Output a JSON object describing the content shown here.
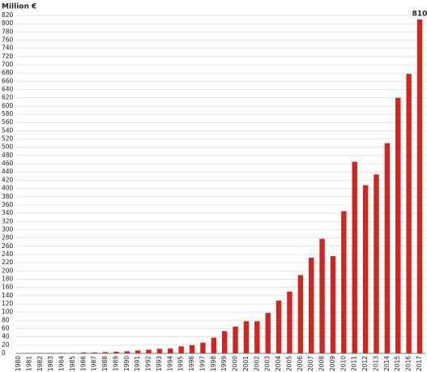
{
  "chart_data": {
    "type": "bar",
    "title": "Million €",
    "categories": [
      "1980",
      "1981",
      "1982",
      "1983",
      "1984",
      "1985",
      "1986",
      "1987",
      "1988",
      "1989",
      "1990",
      "1991",
      "1992",
      "1993",
      "1994",
      "1995",
      "1996",
      "1997",
      "1998",
      "1999",
      "2000",
      "2001",
      "2002",
      "2003",
      "2004",
      "2005",
      "2006",
      "2007",
      "2008",
      "2009",
      "2010",
      "2011",
      "2012",
      "2013",
      "2014",
      "2015",
      "2016",
      "2017"
    ],
    "values": [
      0.5,
      0.5,
      1,
      1,
      1,
      1,
      2,
      2,
      3,
      4,
      5,
      7,
      9,
      11,
      12,
      17,
      20,
      26,
      38,
      54,
      65,
      78,
      78,
      98,
      128,
      150,
      190,
      232,
      278,
      236,
      345,
      465,
      408,
      434,
      510,
      620,
      678,
      810
    ],
    "color": "#d0261f",
    "ylim": [
      0,
      820
    ],
    "yticks": [
      0,
      20,
      40,
      60,
      80,
      100,
      120,
      140,
      160,
      180,
      200,
      220,
      240,
      260,
      280,
      300,
      320,
      340,
      360,
      380,
      400,
      420,
      440,
      460,
      480,
      500,
      520,
      540,
      560,
      580,
      600,
      620,
      640,
      660,
      680,
      700,
      720,
      740,
      760,
      780,
      800,
      820
    ],
    "grid": true
  }
}
